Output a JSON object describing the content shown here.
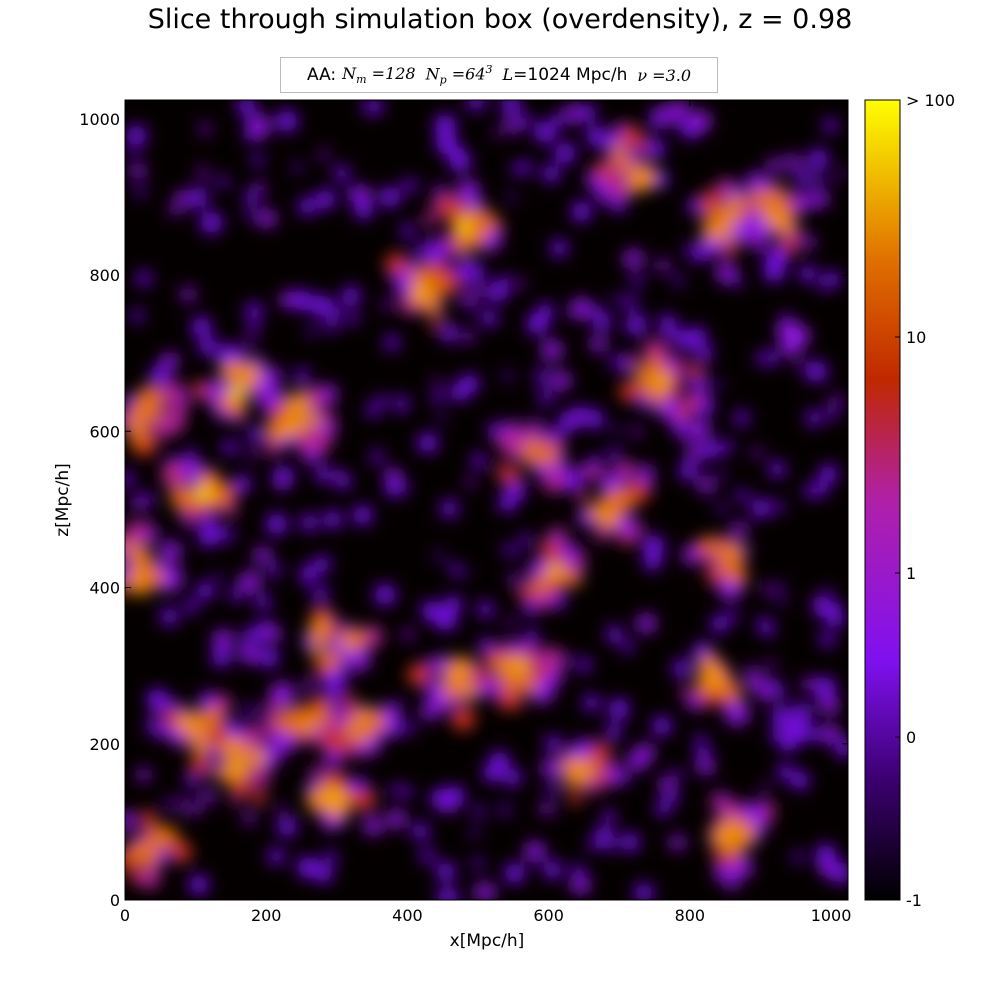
{
  "chart_data": {
    "type": "heatmap",
    "title": "Slice through simulation box (overdensity), z = 0.98",
    "legend": {
      "prefix": "AA:",
      "entries": [
        "N_m = 128",
        "N_p = 64^3",
        "L = 1024 Mpc/h",
        "ν = 3.0"
      ],
      "placement": "top-center"
    },
    "xlabel": "x[Mpc/h]",
    "ylabel": "z[Mpc/h]",
    "xlim": [
      0,
      1024
    ],
    "ylim": [
      0,
      1024
    ],
    "x_ticks": [
      "0",
      "200",
      "400",
      "600",
      "800",
      "1000"
    ],
    "y_ticks": [
      "0",
      "200",
      "400",
      "600",
      "800",
      "1000"
    ],
    "colorbar": {
      "tick_labels": [
        "-1",
        "0",
        "1",
        "10",
        "> 100"
      ],
      "colormap": "gnuplot"
    },
    "high_density_regions": [
      {
        "x": 480,
        "z": 860
      },
      {
        "x": 710,
        "z": 940
      },
      {
        "x": 860,
        "z": 870
      },
      {
        "x": 160,
        "z": 650
      },
      {
        "x": 240,
        "z": 610
      },
      {
        "x": 30,
        "z": 620
      },
      {
        "x": 420,
        "z": 780
      },
      {
        "x": 580,
        "z": 570
      },
      {
        "x": 690,
        "z": 510
      },
      {
        "x": 610,
        "z": 420
      },
      {
        "x": 850,
        "z": 440
      },
      {
        "x": 20,
        "z": 430
      },
      {
        "x": 110,
        "z": 520
      },
      {
        "x": 300,
        "z": 330
      },
      {
        "x": 470,
        "z": 280
      },
      {
        "x": 560,
        "z": 300
      },
      {
        "x": 840,
        "z": 280
      },
      {
        "x": 100,
        "z": 220
      },
      {
        "x": 160,
        "z": 170
      },
      {
        "x": 250,
        "z": 230
      },
      {
        "x": 640,
        "z": 160
      },
      {
        "x": 300,
        "z": 130
      },
      {
        "x": 40,
        "z": 70
      },
      {
        "x": 870,
        "z": 90
      },
      {
        "x": 760,
        "z": 660
      },
      {
        "x": 920,
        "z": 880
      },
      {
        "x": 340,
        "z": 220
      }
    ]
  }
}
